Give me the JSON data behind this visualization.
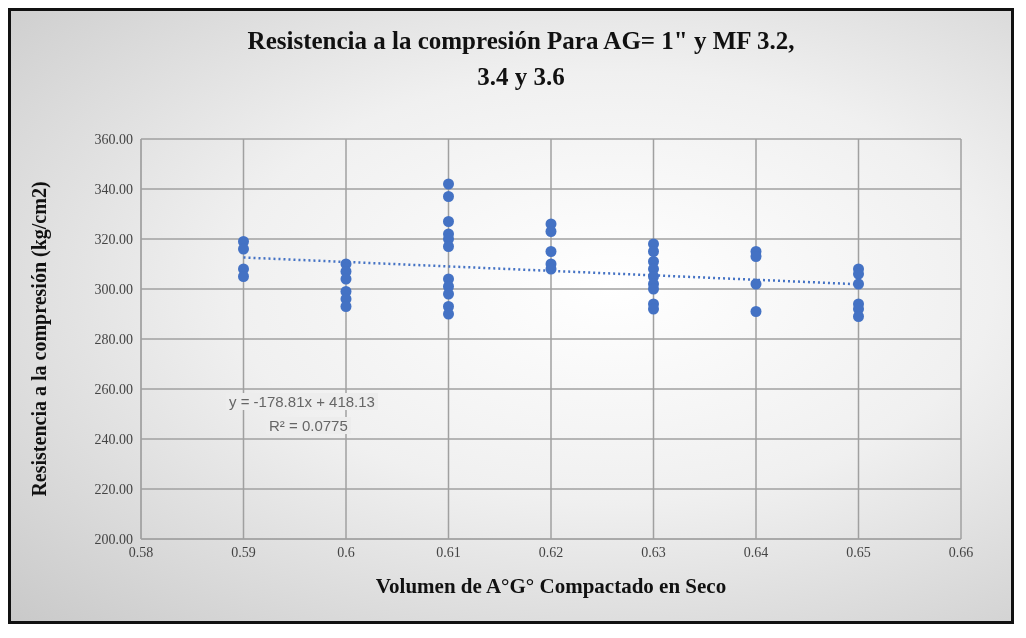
{
  "chart_data": {
    "type": "scatter",
    "title": "Resistencia a la compresión  Para AG= 1\" y MF 3.2, 3.4 y 3.6",
    "xlabel": "Volumen de A°G° Compactado en Seco",
    "ylabel": "Resistencia a la compresión (kg/cm2)",
    "x": [
      0.59,
      0.59,
      0.59,
      0.59,
      0.6,
      0.6,
      0.6,
      0.6,
      0.6,
      0.6,
      0.61,
      0.61,
      0.61,
      0.61,
      0.61,
      0.61,
      0.61,
      0.61,
      0.61,
      0.61,
      0.61,
      0.62,
      0.62,
      0.62,
      0.62,
      0.62,
      0.63,
      0.63,
      0.63,
      0.63,
      0.63,
      0.63,
      0.63,
      0.63,
      0.63,
      0.64,
      0.64,
      0.64,
      0.64,
      0.65,
      0.65,
      0.65,
      0.65,
      0.65,
      0.65
    ],
    "series": [
      {
        "color": "#4472c4",
        "marker": "circle",
        "values": [
          319,
          316,
          308,
          305,
          310,
          307,
          304,
          299,
          296,
          293,
          342,
          337,
          327,
          322,
          320,
          317,
          304,
          301,
          298,
          293,
          290,
          326,
          323,
          315,
          310,
          308,
          318,
          315,
          311,
          308,
          305,
          302,
          300,
          294,
          292,
          315,
          313,
          302,
          291,
          308,
          306,
          302,
          294,
          292,
          289
        ]
      },
      {
        "type": "line",
        "color": "#4472c4",
        "marker": "none",
        "line_style": "dotted",
        "x": [
          0.59,
          0.65
        ],
        "values": [
          312.6,
          301.9
        ]
      }
    ],
    "xlim": [
      0.58,
      0.66
    ],
    "xticks": [
      0.58,
      0.59,
      0.6,
      0.61,
      0.62,
      0.63,
      0.64,
      0.65,
      0.66
    ],
    "ylim": [
      200,
      360
    ],
    "yticks": [
      {
        "value": 200,
        "label": "200.00"
      },
      {
        "value": 220,
        "label": "220.00"
      },
      {
        "value": 240,
        "label": "240.00"
      },
      {
        "value": 260,
        "label": "260.00"
      },
      {
        "value": 280,
        "label": "280.00"
      },
      {
        "value": 300,
        "label": "300.00"
      },
      {
        "value": 320,
        "label": "320.00"
      },
      {
        "value": 340,
        "label": "340.00"
      },
      {
        "value": 360,
        "label": "360.00"
      }
    ],
    "grid": true,
    "annotations": [
      "y = -178.81x + 418.13",
      "R² = 0.0775"
    ]
  }
}
